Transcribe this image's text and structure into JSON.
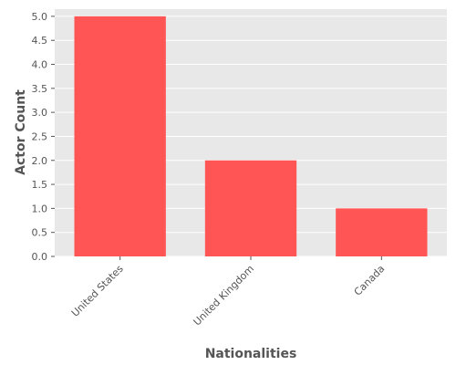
{
  "chart_data": {
    "type": "bar",
    "categories": [
      "United States",
      "United Kingdom",
      "Canada"
    ],
    "values": [
      5,
      2,
      1
    ],
    "xlabel": "Nationalities",
    "ylabel": "Actor Count",
    "ylim": [
      0,
      5.15
    ],
    "yticks": [
      "0.0",
      "0.5",
      "1.0",
      "1.5",
      "2.0",
      "2.5",
      "3.0",
      "3.5",
      "4.0",
      "4.5",
      "5.0"
    ],
    "ytick_values": [
      0,
      0.5,
      1,
      1.5,
      2,
      2.5,
      3,
      3.5,
      4,
      4.5,
      5
    ],
    "grid": true,
    "colors": {
      "bar": "#ff5555",
      "plot_bg": "#e8e8e8",
      "grid": "#ffffff",
      "text": "#555555"
    }
  }
}
